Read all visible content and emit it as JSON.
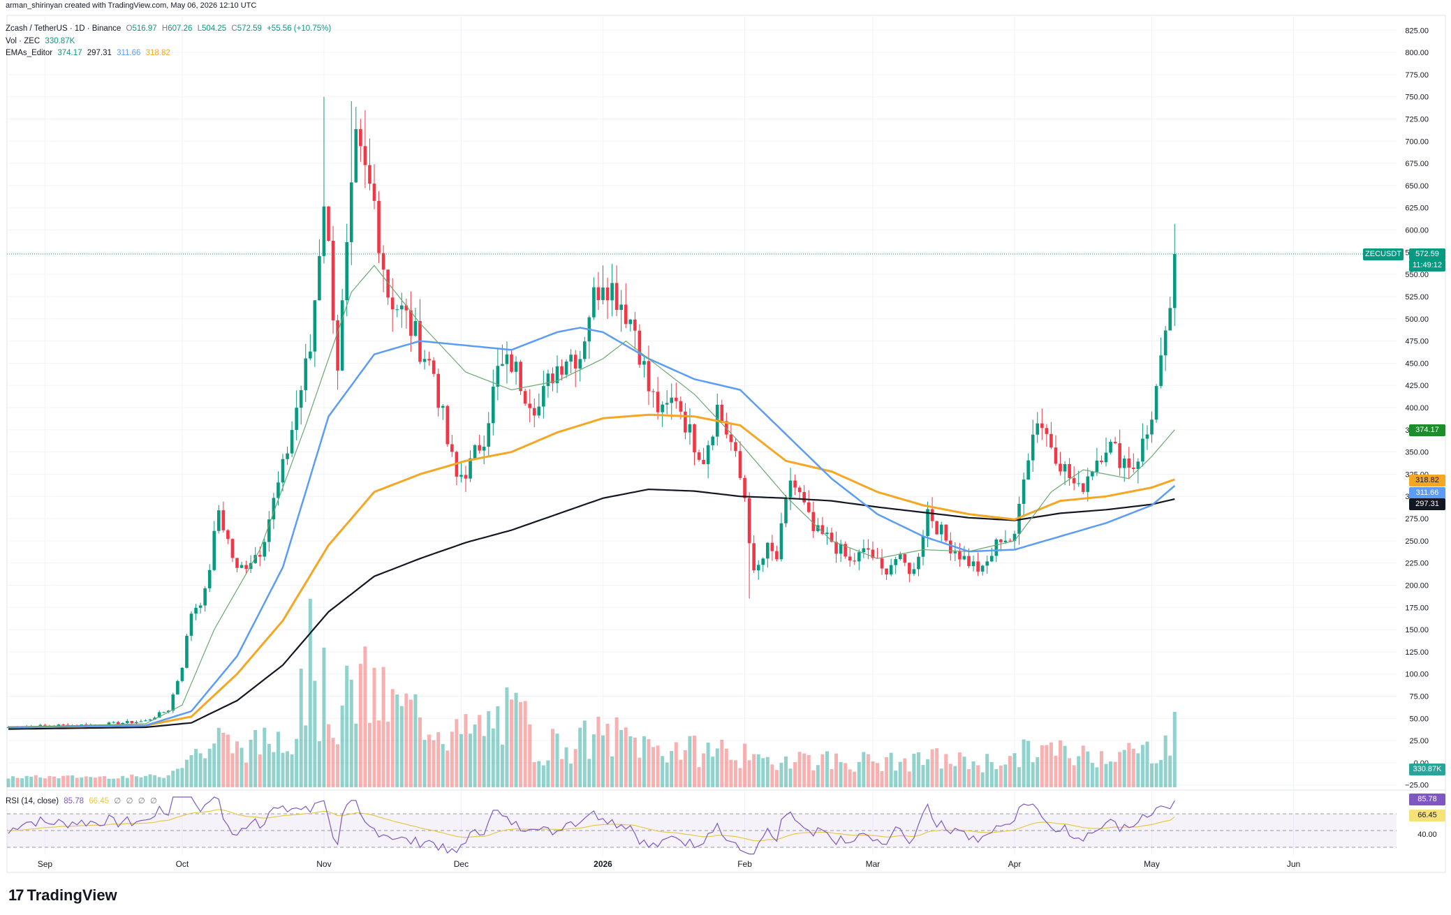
{
  "credit": "arman_shirinyan created with TradingView.com, May 06, 2026 12:10 UTC",
  "header": {
    "symbol": "Zcash / TetherUS · 1D · Binance",
    "open_label": "O",
    "open": "516.97",
    "high_label": "H",
    "high": "607.26",
    "low_label": "L",
    "low": "504.25",
    "close_label": "C",
    "close": "572.59",
    "change": "+55.56 (+10.75%)",
    "vol_label": "Vol · ZEC",
    "vol_value": "330.87K",
    "ema_label": "EMAs_Editor",
    "ema_values": [
      "374.17",
      "297.31",
      "311.66",
      "318.82"
    ],
    "rsi_label": "RSI (14, close)",
    "rsi_value": "85.78",
    "rsi_ma": "66.45",
    "rsi_extra": [
      "∅",
      "∅",
      "∅",
      "∅"
    ]
  },
  "price_tag": {
    "symbol": "ZECUSDT",
    "value": "572.59",
    "countdown": "11:49:12"
  },
  "axis_tags": {
    "ema20": "374.17",
    "ema100": "318.82",
    "ema50": "311.66",
    "ema200": "297.31",
    "volume": "330.87K",
    "rsi": "85.78",
    "rsi_ma": "66.45",
    "rsi_40": "40.00"
  },
  "logo_text": "TradingView",
  "colors": {
    "up": "#089981",
    "down": "#f23645",
    "ema20": "#6aa86f",
    "ema50": "#5b9cf6",
    "ema100": "#f5a623",
    "ema200": "#131722",
    "rsi": "#7e57c2",
    "rsi_ma": "#e6c84a"
  },
  "chart_data": {
    "type": "candlestick",
    "y_ticks": [
      -25,
      0,
      25,
      50,
      75,
      100,
      125,
      150,
      175,
      200,
      225,
      250,
      275,
      300,
      325,
      350,
      375,
      400,
      425,
      450,
      475,
      500,
      525,
      550,
      575,
      600,
      625,
      650,
      675,
      700,
      725,
      750,
      775,
      800,
      825
    ],
    "y_tick_labels": [
      "−25.00",
      "0.00",
      "25.00",
      "50.00",
      "75.00",
      "100.00",
      "125.00",
      "150.00",
      "175.00",
      "200.00",
      "225.00",
      "250.00",
      "275.00",
      "300.00",
      "325.00",
      "350.00",
      "375.00",
      "400.00",
      "425.00",
      "450.00",
      "475.00",
      "500.00",
      "525.00",
      "550.00",
      "575.00",
      "600.00",
      "625.00",
      "650.00",
      "675.00",
      "700.00",
      "725.00",
      "750.00",
      "775.00",
      "800.00",
      "825.00"
    ],
    "ylim": [
      -37,
      837
    ],
    "x_ticks": [
      {
        "label": "Sep",
        "day": 8
      },
      {
        "label": "Oct",
        "day": 38
      },
      {
        "label": "Nov",
        "day": 69
      },
      {
        "label": "Dec",
        "day": 99
      },
      {
        "label": "2026",
        "day": 130
      },
      {
        "label": "Feb",
        "day": 161
      },
      {
        "label": "Mar",
        "day": 189
      },
      {
        "label": "Apr",
        "day": 220
      },
      {
        "label": "May",
        "day": 250
      },
      {
        "label": "Jun",
        "day": 281
      }
    ],
    "close_anchors": [
      [
        0,
        40
      ],
      [
        10,
        42
      ],
      [
        20,
        43
      ],
      [
        30,
        47
      ],
      [
        35,
        60
      ],
      [
        38,
        110
      ],
      [
        40,
        170
      ],
      [
        43,
        190
      ],
      [
        46,
        285
      ],
      [
        50,
        215
      ],
      [
        55,
        240
      ],
      [
        60,
        330
      ],
      [
        63,
        400
      ],
      [
        66,
        465
      ],
      [
        69,
        640
      ],
      [
        72,
        450
      ],
      [
        76,
        690
      ],
      [
        80,
        630
      ],
      [
        83,
        530
      ],
      [
        87,
        500
      ],
      [
        90,
        470
      ],
      [
        93,
        440
      ],
      [
        96,
        360
      ],
      [
        98,
        320
      ],
      [
        101,
        335
      ],
      [
        104,
        370
      ],
      [
        107,
        440
      ],
      [
        110,
        450
      ],
      [
        113,
        420
      ],
      [
        116,
        400
      ],
      [
        119,
        440
      ],
      [
        122,
        460
      ],
      [
        125,
        460
      ],
      [
        127,
        510
      ],
      [
        130,
        550
      ],
      [
        134,
        520
      ],
      [
        137,
        490
      ],
      [
        140,
        420
      ],
      [
        143,
        390
      ],
      [
        146,
        415
      ],
      [
        149,
        370
      ],
      [
        152,
        345
      ],
      [
        155,
        400
      ],
      [
        158,
        360
      ],
      [
        161,
        300
      ],
      [
        163,
        210
      ],
      [
        166,
        240
      ],
      [
        168,
        230
      ],
      [
        171,
        320
      ],
      [
        173,
        300
      ],
      [
        176,
        260
      ],
      [
        180,
        250
      ],
      [
        184,
        225
      ],
      [
        188,
        240
      ],
      [
        191,
        215
      ],
      [
        194,
        230
      ],
      [
        198,
        215
      ],
      [
        201,
        285
      ],
      [
        205,
        250
      ],
      [
        209,
        230
      ],
      [
        213,
        215
      ],
      [
        217,
        255
      ],
      [
        220,
        250
      ],
      [
        222,
        330
      ],
      [
        225,
        390
      ],
      [
        228,
        360
      ],
      [
        231,
        330
      ],
      [
        234,
        305
      ],
      [
        237,
        335
      ],
      [
        240,
        360
      ],
      [
        243,
        345
      ],
      [
        246,
        335
      ],
      [
        249,
        370
      ],
      [
        251,
        420
      ],
      [
        253,
        470
      ],
      [
        254,
        517
      ],
      [
        255,
        573
      ]
    ],
    "spikes": {
      "69": 750,
      "72": 420,
      "75": 745,
      "78": 735,
      "100": 305,
      "162": 185,
      "130": 560,
      "225": 395,
      "255": 607,
      "254": 505
    },
    "ema20": [
      [
        0,
        40
      ],
      [
        30,
        44
      ],
      [
        38,
        65
      ],
      [
        45,
        150
      ],
      [
        55,
        240
      ],
      [
        65,
        380
      ],
      [
        75,
        530
      ],
      [
        80,
        560
      ],
      [
        90,
        495
      ],
      [
        100,
        440
      ],
      [
        110,
        420
      ],
      [
        120,
        430
      ],
      [
        130,
        455
      ],
      [
        135,
        475
      ],
      [
        140,
        455
      ],
      [
        150,
        415
      ],
      [
        160,
        360
      ],
      [
        170,
        300
      ],
      [
        180,
        250
      ],
      [
        190,
        230
      ],
      [
        200,
        240
      ],
      [
        210,
        238
      ],
      [
        220,
        250
      ],
      [
        228,
        305
      ],
      [
        235,
        330
      ],
      [
        245,
        320
      ],
      [
        250,
        345
      ],
      [
        255,
        375
      ]
    ],
    "ema50": [
      [
        0,
        40
      ],
      [
        30,
        42
      ],
      [
        40,
        58
      ],
      [
        50,
        120
      ],
      [
        60,
        220
      ],
      [
        70,
        390
      ],
      [
        80,
        460
      ],
      [
        90,
        475
      ],
      [
        100,
        470
      ],
      [
        110,
        465
      ],
      [
        120,
        485
      ],
      [
        125,
        490
      ],
      [
        130,
        485
      ],
      [
        140,
        455
      ],
      [
        150,
        432
      ],
      [
        160,
        420
      ],
      [
        170,
        370
      ],
      [
        180,
        320
      ],
      [
        190,
        280
      ],
      [
        200,
        255
      ],
      [
        210,
        238
      ],
      [
        220,
        240
      ],
      [
        230,
        255
      ],
      [
        240,
        270
      ],
      [
        250,
        290
      ],
      [
        255,
        312
      ]
    ],
    "ema100": [
      [
        0,
        40
      ],
      [
        30,
        42
      ],
      [
        40,
        52
      ],
      [
        50,
        100
      ],
      [
        60,
        160
      ],
      [
        70,
        245
      ],
      [
        80,
        305
      ],
      [
        90,
        325
      ],
      [
        100,
        340
      ],
      [
        110,
        350
      ],
      [
        120,
        372
      ],
      [
        130,
        388
      ],
      [
        140,
        392
      ],
      [
        150,
        390
      ],
      [
        160,
        380
      ],
      [
        170,
        340
      ],
      [
        180,
        328
      ],
      [
        190,
        305
      ],
      [
        200,
        290
      ],
      [
        210,
        280
      ],
      [
        220,
        274
      ],
      [
        230,
        295
      ],
      [
        240,
        300
      ],
      [
        250,
        310
      ],
      [
        255,
        319
      ]
    ],
    "ema200": [
      [
        0,
        38
      ],
      [
        30,
        40
      ],
      [
        40,
        45
      ],
      [
        50,
        70
      ],
      [
        60,
        110
      ],
      [
        70,
        170
      ],
      [
        80,
        210
      ],
      [
        90,
        230
      ],
      [
        100,
        248
      ],
      [
        110,
        262
      ],
      [
        120,
        280
      ],
      [
        130,
        298
      ],
      [
        140,
        308
      ],
      [
        150,
        306
      ],
      [
        160,
        300
      ],
      [
        170,
        298
      ],
      [
        180,
        295
      ],
      [
        190,
        288
      ],
      [
        200,
        282
      ],
      [
        210,
        276
      ],
      [
        220,
        273
      ],
      [
        230,
        281
      ],
      [
        240,
        285
      ],
      [
        250,
        291
      ],
      [
        255,
        297
      ]
    ],
    "volume_max_value": 188,
    "rsi": {
      "current": 85.78,
      "ma": 66.45,
      "upper_band": 70,
      "lower_band": 30,
      "middle": 50
    }
  }
}
